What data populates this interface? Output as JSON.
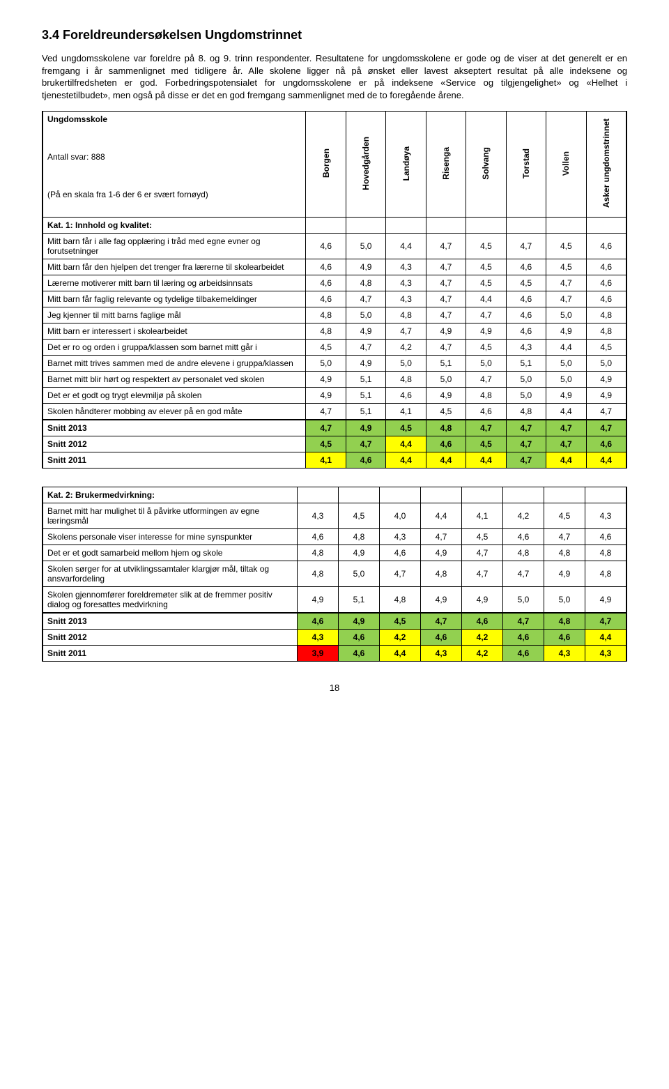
{
  "heading": "3.4  Foreldreundersøkelsen Ungdomstrinnet",
  "paragraph": "Ved ungdomsskolene var foreldre på 8. og 9. trinn respondenter. Resultatene for ungdomsskolene er gode og de viser at det generelt er en fremgang i år sammenlignet med tidligere år. Alle skolene ligger nå på ønsket eller lavest akseptert resultat på alle indeksene og brukertilfredsheten er god. Forbedringspotensialet for ungdomsskolene er på indeksene «Service og tilgjengelighet» og «Helhet i tjenestetilbudet», men også på disse er det en god fremgang sammenlignet med de to foregående årene.",
  "table1": {
    "header_title": "Ungdomsskole",
    "header_sub1": "Antall svar: 888",
    "header_sub2": "(På en skala fra 1-6 der 6 er svært fornøyd)",
    "columns": [
      "Borgen",
      "Hovedgården",
      "Landøya",
      "Risenga",
      "Solvang",
      "Torstad",
      "Vollen",
      "Asker ungdomstrinnet"
    ],
    "kat_label": "Kat. 1: Innhold og kvalitet:",
    "rows": [
      {
        "label": "Mitt barn får i alle fag opplæring i tråd med egne evner og forutsetninger",
        "vals": [
          "4,6",
          "5,0",
          "4,4",
          "4,7",
          "4,5",
          "4,7",
          "4,5",
          "4,6"
        ]
      },
      {
        "label": "Mitt barn får den hjelpen det trenger fra lærerne til skolearbeidet",
        "vals": [
          "4,6",
          "4,9",
          "4,3",
          "4,7",
          "4,5",
          "4,6",
          "4,5",
          "4,6"
        ]
      },
      {
        "label": "Lærerne motiverer mitt barn til læring og arbeidsinnsats",
        "vals": [
          "4,6",
          "4,8",
          "4,3",
          "4,7",
          "4,5",
          "4,5",
          "4,7",
          "4,6"
        ]
      },
      {
        "label": "Mitt barn får faglig relevante og tydelige tilbakemeldinger",
        "vals": [
          "4,6",
          "4,7",
          "4,3",
          "4,7",
          "4,4",
          "4,6",
          "4,7",
          "4,6"
        ]
      },
      {
        "label": "Jeg kjenner til mitt barns faglige mål",
        "vals": [
          "4,8",
          "5,0",
          "4,8",
          "4,7",
          "4,7",
          "4,6",
          "5,0",
          "4,8"
        ]
      },
      {
        "label": "Mitt barn er interessert i skolearbeidet",
        "vals": [
          "4,8",
          "4,9",
          "4,7",
          "4,9",
          "4,9",
          "4,6",
          "4,9",
          "4,8"
        ]
      },
      {
        "label": "Det er ro og orden i gruppa/klassen som barnet mitt går i",
        "vals": [
          "4,5",
          "4,7",
          "4,2",
          "4,7",
          "4,5",
          "4,3",
          "4,4",
          "4,5"
        ]
      },
      {
        "label": "Barnet mitt trives sammen med de andre elevene i gruppa/klassen",
        "vals": [
          "5,0",
          "4,9",
          "5,0",
          "5,1",
          "5,0",
          "5,1",
          "5,0",
          "5,0"
        ]
      },
      {
        "label": "Barnet mitt blir hørt og respektert av personalet ved skolen",
        "vals": [
          "4,9",
          "5,1",
          "4,8",
          "5,0",
          "4,7",
          "5,0",
          "5,0",
          "4,9"
        ]
      },
      {
        "label": "Det er et godt og trygt elevmiljø på skolen",
        "vals": [
          "4,9",
          "5,1",
          "4,6",
          "4,9",
          "4,8",
          "5,0",
          "4,9",
          "4,9"
        ]
      },
      {
        "label": "Skolen håndterer mobbing av elever på en god måte",
        "vals": [
          "4,7",
          "5,1",
          "4,1",
          "4,5",
          "4,6",
          "4,8",
          "4,4",
          "4,7"
        ]
      }
    ],
    "snitt2013": {
      "label": "Snitt 2013",
      "vals": [
        "4,7",
        "4,9",
        "4,5",
        "4,8",
        "4,7",
        "4,7",
        "4,7",
        "4,7"
      ],
      "bg": [
        "g",
        "g",
        "g",
        "g",
        "g",
        "g",
        "g",
        "g"
      ]
    },
    "snitt2012": {
      "label": "Snitt 2012",
      "vals": [
        "4,5",
        "4,7",
        "4,4",
        "4,6",
        "4,5",
        "4,7",
        "4,7",
        "4,6"
      ],
      "bg": [
        "g",
        "g",
        "y",
        "g",
        "g",
        "g",
        "g",
        "g"
      ]
    },
    "snitt2011": {
      "label": "Snitt 2011",
      "vals": [
        "4,1",
        "4,6",
        "4,4",
        "4,4",
        "4,4",
        "4,7",
        "4,4",
        "4,4"
      ],
      "bg": [
        "y",
        "g",
        "y",
        "y",
        "y",
        "g",
        "y",
        "y"
      ]
    }
  },
  "table2": {
    "kat_label": "Kat. 2: Brukermedvirkning:",
    "rows": [
      {
        "label": "Barnet mitt har mulighet til å påvirke utformingen av egne læringsmål",
        "vals": [
          "4,3",
          "4,5",
          "4,0",
          "4,4",
          "4,1",
          "4,2",
          "4,5",
          "4,3"
        ]
      },
      {
        "label": "Skolens personale viser interesse for mine synspunkter",
        "vals": [
          "4,6",
          "4,8",
          "4,3",
          "4,7",
          "4,5",
          "4,6",
          "4,7",
          "4,6"
        ]
      },
      {
        "label": "Det er et godt samarbeid mellom hjem og skole",
        "vals": [
          "4,8",
          "4,9",
          "4,6",
          "4,9",
          "4,7",
          "4,8",
          "4,8",
          "4,8"
        ]
      },
      {
        "label": "Skolen sørger for at utviklingssamtaler klargjør mål, tiltak og ansvarfordeling",
        "vals": [
          "4,8",
          "5,0",
          "4,7",
          "4,8",
          "4,7",
          "4,7",
          "4,9",
          "4,8"
        ]
      },
      {
        "label": "Skolen gjennomfører foreldremøter slik at de fremmer positiv dialog og foresattes medvirkning",
        "vals": [
          "4,9",
          "5,1",
          "4,8",
          "4,9",
          "4,9",
          "5,0",
          "5,0",
          "4,9"
        ]
      }
    ],
    "snitt2013": {
      "label": "Snitt 2013",
      "vals": [
        "4,6",
        "4,9",
        "4,5",
        "4,7",
        "4,6",
        "4,7",
        "4,8",
        "4,7"
      ],
      "bg": [
        "g",
        "g",
        "g",
        "g",
        "g",
        "g",
        "g",
        "g"
      ]
    },
    "snitt2012": {
      "label": "Snitt 2012",
      "vals": [
        "4,3",
        "4,6",
        "4,2",
        "4,6",
        "4,2",
        "4,6",
        "4,6",
        "4,4"
      ],
      "bg": [
        "y",
        "g",
        "y",
        "g",
        "y",
        "g",
        "g",
        "y"
      ]
    },
    "snitt2011": {
      "label": "Snitt 2011",
      "vals": [
        "3,9",
        "4,6",
        "4,4",
        "4,3",
        "4,2",
        "4,6",
        "4,3",
        "4,3"
      ],
      "bg": [
        "r",
        "g",
        "y",
        "y",
        "y",
        "g",
        "y",
        "y"
      ]
    }
  },
  "page_number": "18"
}
